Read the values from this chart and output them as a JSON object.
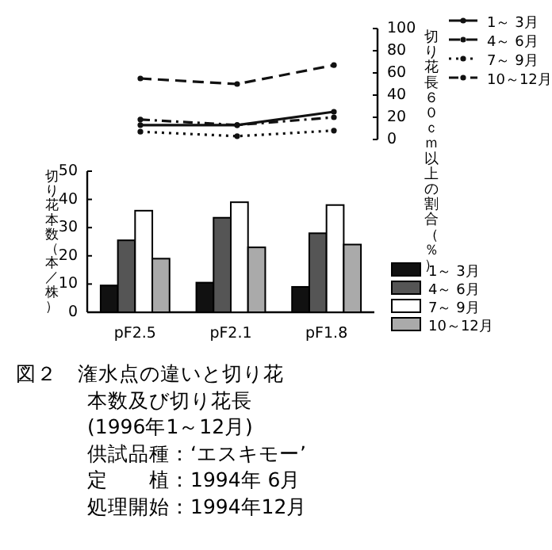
{
  "chart_data": [
    {
      "type": "line",
      "categories": [
        null,
        null,
        null
      ],
      "ylabel": "切り花長６０ｃｍ以上の割合（％）",
      "ylim": [
        0,
        100
      ],
      "yticks": [
        0,
        20,
        40,
        60,
        80,
        100
      ],
      "marker": "circle",
      "legend": "top right",
      "grid": false,
      "series": [
        {
          "name": "1～ 3月",
          "color": "#111111",
          "line_style": "solid",
          "values": [
            13,
            13,
            25
          ]
        },
        {
          "name": "4～ 6月",
          "color": "#111111",
          "line_style": "dashed",
          "values": [
            55,
            50,
            67
          ]
        },
        {
          "name": "7～ 9月",
          "color": "#111111",
          "line_style": "dotted",
          "values": [
            7,
            3,
            8
          ]
        },
        {
          "name": "10～12月",
          "color": "#111111",
          "line_style": "dashdot",
          "values": [
            18,
            13,
            20
          ]
        }
      ]
    },
    {
      "type": "bar",
      "categories": [
        "pF2.5",
        "pF2.1",
        "pF1.8"
      ],
      "ylabel": "切り花本数（本／株）",
      "ylim": [
        0,
        50
      ],
      "yticks": [
        0,
        10,
        20,
        30,
        40,
        50
      ],
      "legend": "right",
      "grid": false,
      "series": [
        {
          "name": "1～ 3月",
          "color": "#111111",
          "values": [
            9.5,
            10.5,
            9
          ]
        },
        {
          "name": "4～ 6月",
          "color": "#555555",
          "values": [
            25.5,
            33.5,
            28
          ]
        },
        {
          "name": "7～ 9月",
          "color": "#ffffff",
          "values": [
            36,
            39,
            38
          ]
        },
        {
          "name": "10～12月",
          "color": "#aaaaaa",
          "values": [
            19,
            23,
            24
          ]
        }
      ],
      "annotations": [
        "図２　潅水点の違いと切り花",
        "本数及び切り花長",
        "(1996年1～12月)",
        "供試品種：‘エスキモー’",
        "定　　植：1994年 6月",
        "処理開始：1994年12月"
      ]
    }
  ]
}
